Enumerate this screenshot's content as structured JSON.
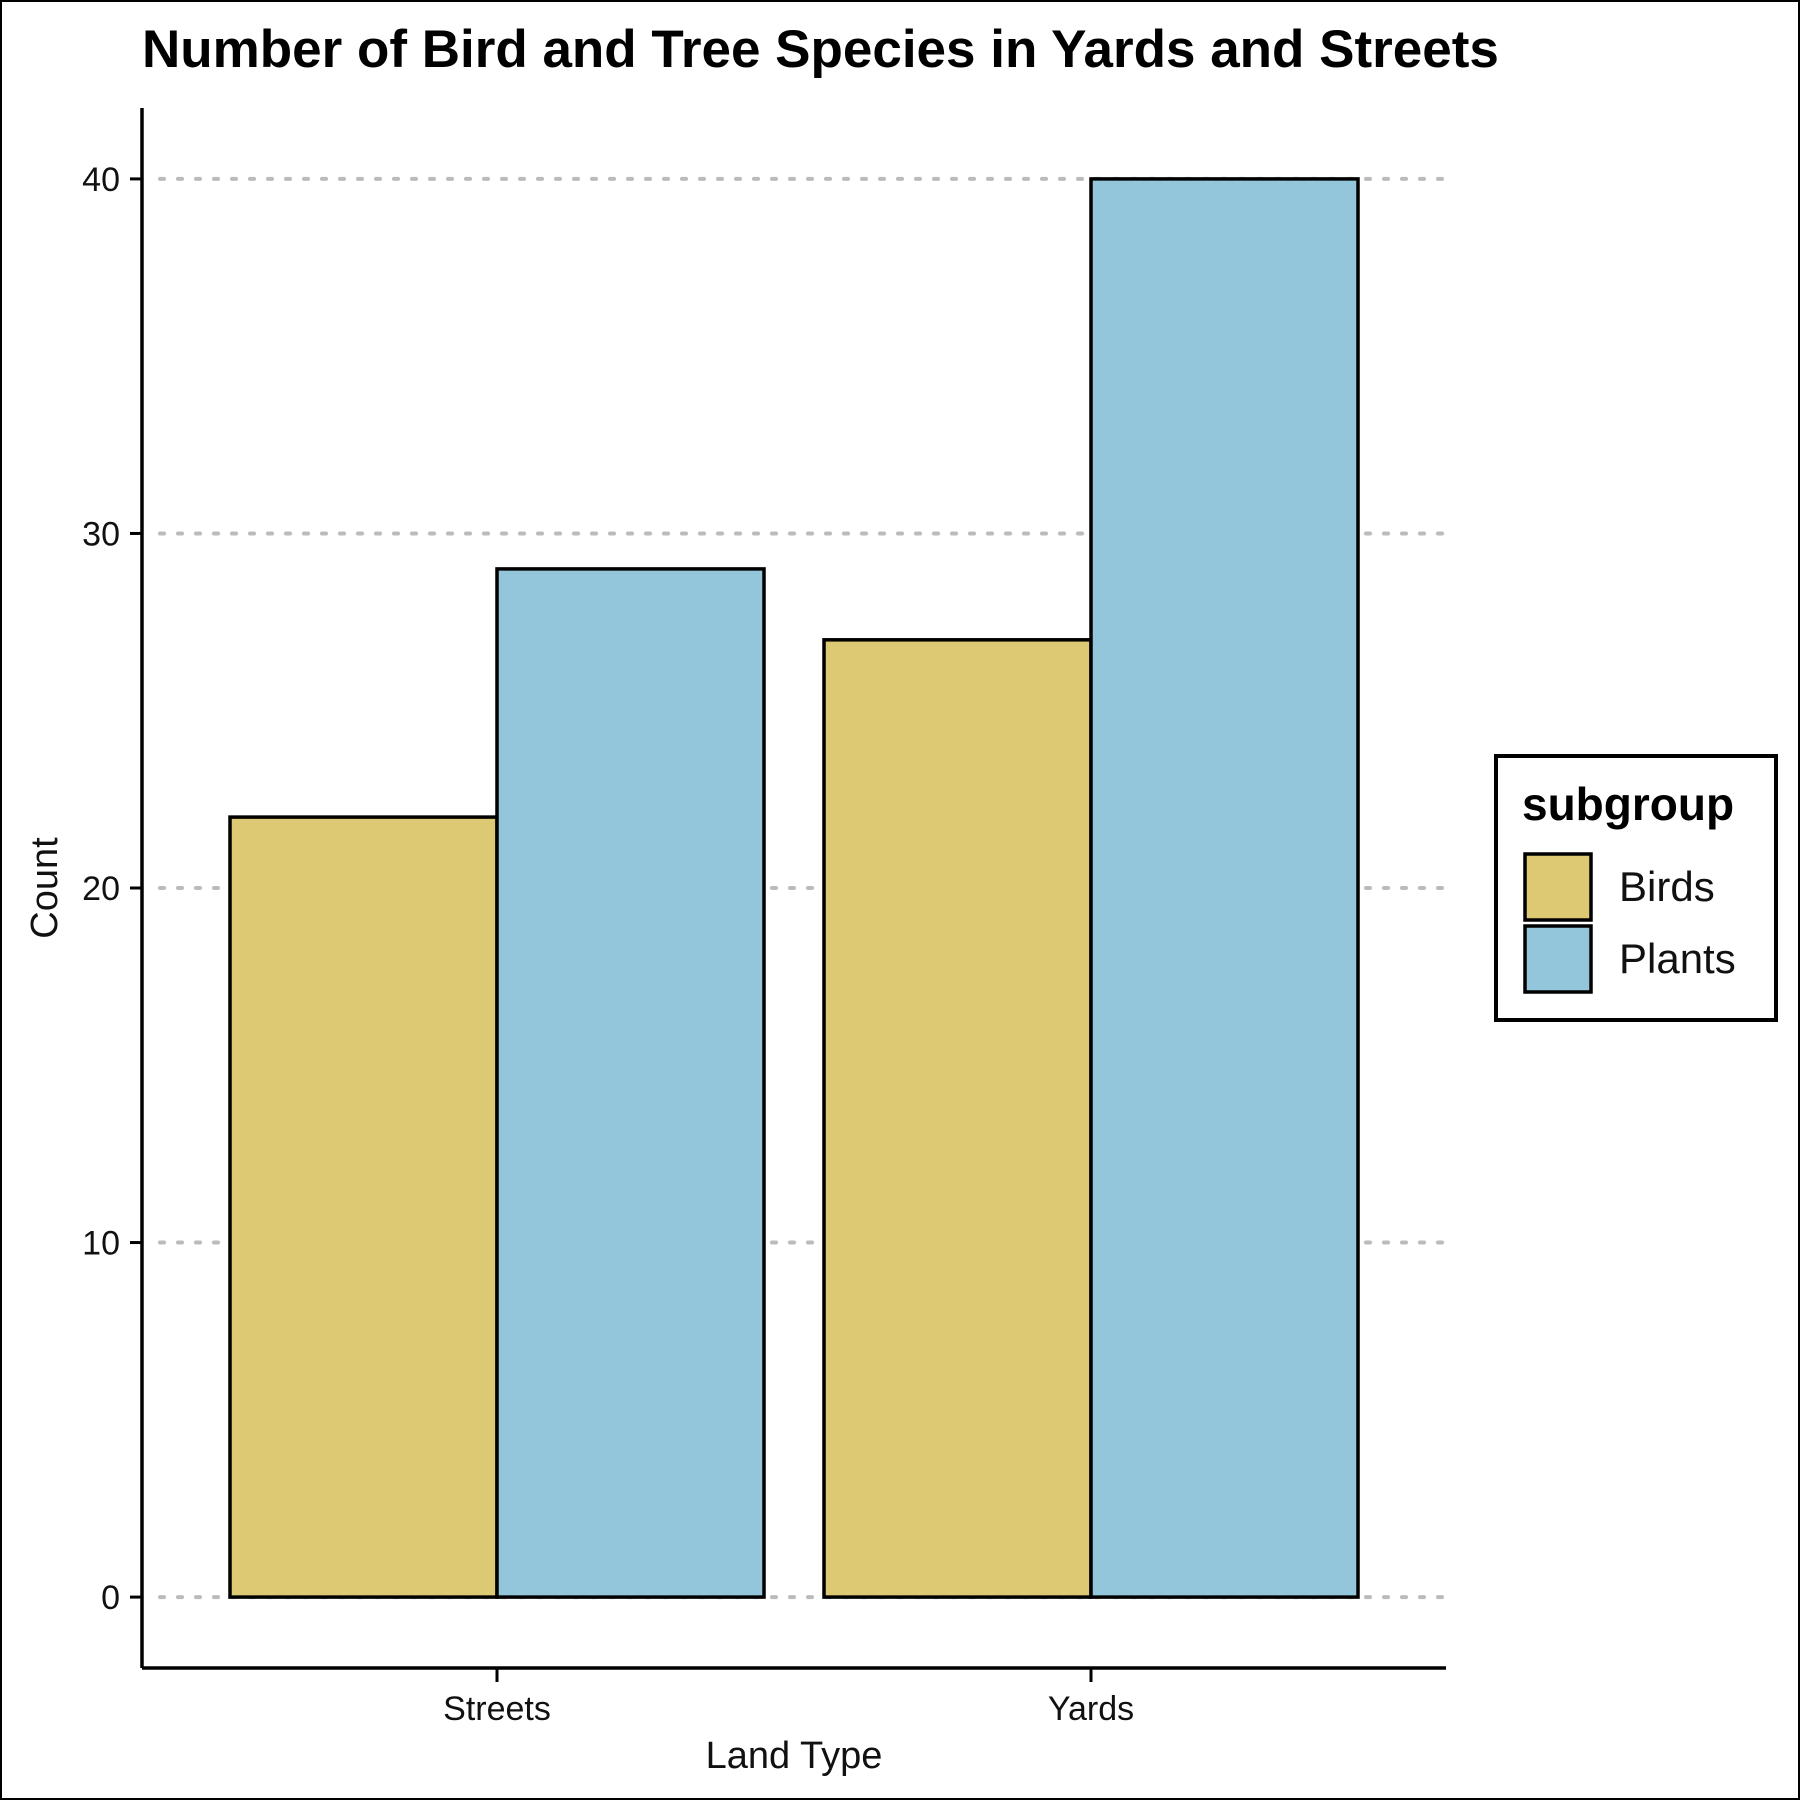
{
  "chart_data": {
    "type": "bar",
    "title": "Number of Bird and Tree Species in Yards and Streets",
    "xlabel": "Land Type",
    "ylabel": "Count",
    "categories": [
      "Streets",
      "Yards"
    ],
    "series": [
      {
        "name": "Birds",
        "values": [
          22,
          27
        ],
        "color": "#DDC874"
      },
      {
        "name": "Plants",
        "values": [
          29,
          40
        ],
        "color": "#93C5DB"
      }
    ],
    "ylim": [
      -2,
      42
    ],
    "yticks": [
      0,
      10,
      20,
      30,
      40
    ],
    "grid": "horizontal dotted",
    "legend": {
      "title": "subgroup",
      "position": "right"
    }
  }
}
